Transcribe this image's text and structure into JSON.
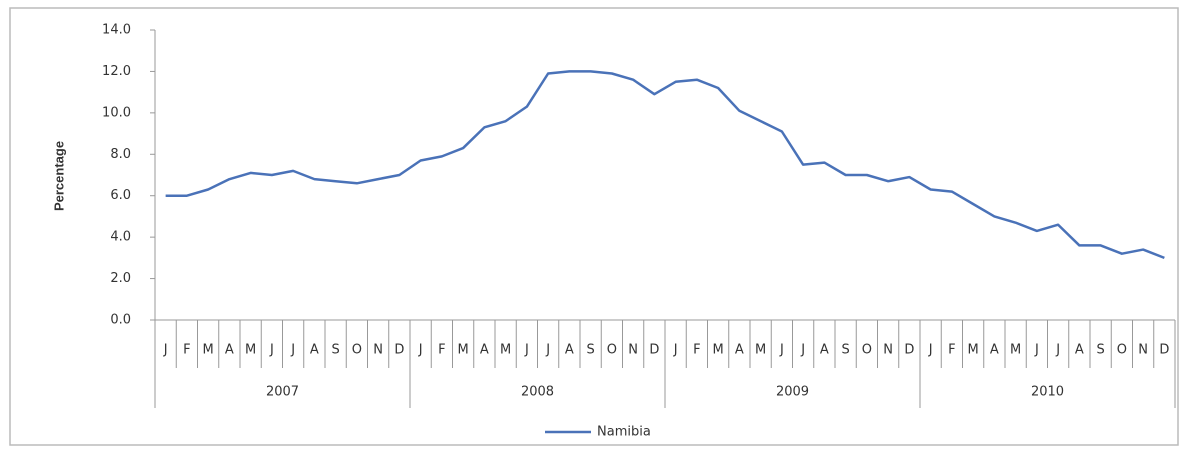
{
  "chart_data": {
    "type": "line",
    "y_label": "Percentage",
    "categories": [
      "J",
      "F",
      "M",
      "A",
      "M",
      "J",
      "J",
      "A",
      "S",
      "O",
      "N",
      "D",
      "J",
      "F",
      "M",
      "A",
      "M",
      "J",
      "J",
      "A",
      "S",
      "O",
      "N",
      "D",
      "J",
      "F",
      "M",
      "A",
      "M",
      "J",
      "J",
      "A",
      "S",
      "O",
      "N",
      "D",
      "J",
      "F",
      "M",
      "A",
      "M",
      "J",
      "J",
      "A",
      "S",
      "O",
      "N",
      "D"
    ],
    "year_groups": [
      "2007",
      "2008",
      "2009",
      "2010"
    ],
    "series": [
      {
        "name": "Namibia",
        "color": "#4a72b8",
        "values": [
          6.0,
          6.0,
          6.3,
          6.8,
          7.1,
          7.0,
          7.2,
          6.8,
          6.7,
          6.6,
          6.8,
          7.0,
          7.7,
          7.9,
          8.3,
          9.3,
          9.6,
          10.3,
          11.9,
          12.0,
          12.0,
          11.9,
          11.6,
          10.9,
          11.5,
          11.6,
          11.2,
          10.1,
          9.6,
          9.1,
          7.5,
          7.6,
          7.0,
          7.0,
          6.7,
          6.9,
          6.3,
          6.2,
          5.6,
          5.0,
          4.7,
          4.3,
          4.6,
          3.6,
          3.6,
          3.2,
          3.4,
          3.0
        ]
      }
    ],
    "ylim": [
      0,
      14
    ],
    "yticks": [
      {
        "value": 0,
        "label": "0.0"
      },
      {
        "value": 2,
        "label": "2.0"
      },
      {
        "value": 4,
        "label": "4.0"
      },
      {
        "value": 6,
        "label": "6.0"
      },
      {
        "value": 8,
        "label": "8.0"
      },
      {
        "value": 10,
        "label": "10.0"
      },
      {
        "value": 12,
        "label": "12.0"
      },
      {
        "value": 14,
        "label": "14.0"
      }
    ],
    "grid": false,
    "legend": "bottom"
  }
}
